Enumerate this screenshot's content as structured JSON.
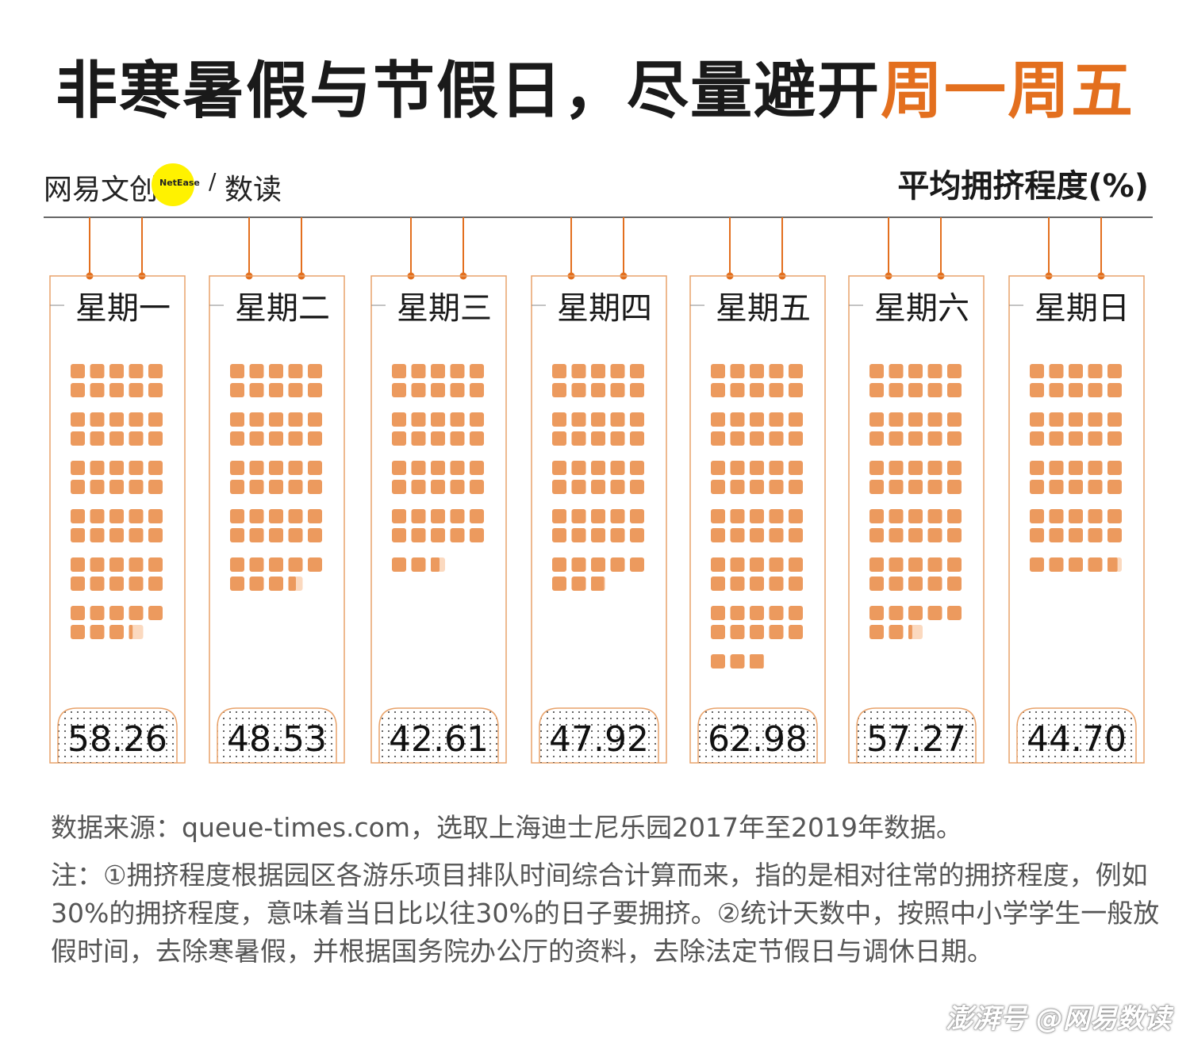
{
  "header": {
    "title_main": "非寒暑假与节假日，尽量避开",
    "title_highlight": "周一周五",
    "highlight_color": "#e36f1e"
  },
  "brand": {
    "name_cn": "网易文创",
    "badge_text": "NetEase",
    "slash": "/",
    "sub": "数读"
  },
  "unit_label": "平均拥挤程度(%)",
  "colors": {
    "accent": "#e36f1e",
    "block": "#ec9a5e",
    "block_faint": "#fbd9bf",
    "frame": "#e8a26a"
  },
  "chart_data": {
    "type": "bar",
    "title": "非寒暑假与节假日，尽量避开周一周五",
    "ylabel": "平均拥挤程度(%)",
    "encoding": "each small block = 1%",
    "categories": [
      "星期一",
      "星期二",
      "星期三",
      "星期四",
      "星期五",
      "星期六",
      "星期日"
    ],
    "values": [
      58.26,
      48.53,
      42.61,
      47.92,
      62.98,
      57.27,
      44.7
    ],
    "value_labels": [
      "58.26",
      "48.53",
      "42.61",
      "47.92",
      "62.98",
      "57.27",
      "44.70"
    ]
  },
  "source": "数据来源：queue-times.com，选取上海迪士尼乐园2017年至2019年数据。",
  "note": "注：①拥挤程度根据园区各游乐项目排队时间综合计算而来，指的是相对往常的拥挤程度，例如30%的拥挤程度，意味着当日比以往30%的日子要拥挤。②统计天数中，按照中小学学生一般放假时间，去除寒暑假，并根据国务院办公厅的资料，去除法定节假日与调休日期。",
  "watermark": "澎湃号 @网易数读"
}
